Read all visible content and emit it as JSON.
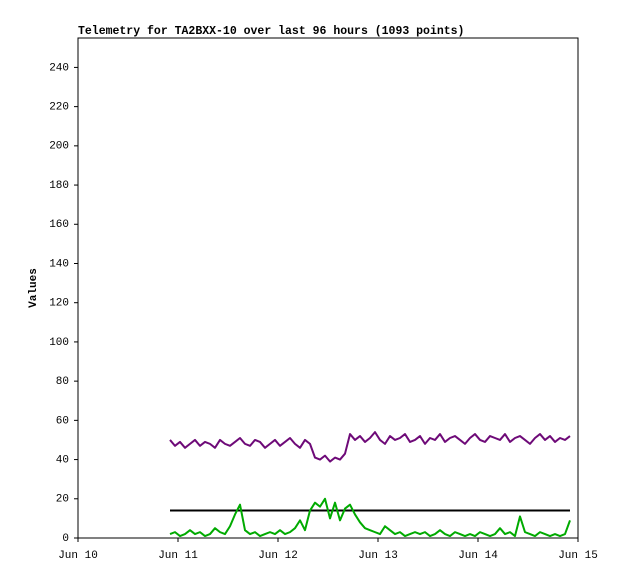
{
  "chart_data": {
    "type": "line",
    "title": "Telemetry for TA2BXX-10 over last 96 hours (1093 points)",
    "y_label": "Values",
    "x": [
      0.92,
      0.97,
      1.02,
      1.07,
      1.12,
      1.17,
      1.22,
      1.27,
      1.32,
      1.37,
      1.42,
      1.47,
      1.52,
      1.57,
      1.62,
      1.67,
      1.72,
      1.77,
      1.82,
      1.87,
      1.92,
      1.97,
      2.02,
      2.07,
      2.12,
      2.17,
      2.22,
      2.27,
      2.32,
      2.37,
      2.42,
      2.47,
      2.52,
      2.57,
      2.62,
      2.67,
      2.72,
      2.77,
      2.82,
      2.87,
      2.92,
      2.97,
      3.02,
      3.07,
      3.12,
      3.17,
      3.22,
      3.27,
      3.32,
      3.37,
      3.42,
      3.47,
      3.52,
      3.57,
      3.62,
      3.67,
      3.72,
      3.77,
      3.82,
      3.87,
      3.92,
      3.97,
      4.02,
      4.07,
      4.12,
      4.17,
      4.22,
      4.27,
      4.32,
      4.37,
      4.42,
      4.47,
      4.52,
      4.57,
      4.62,
      4.67,
      4.72,
      4.77,
      4.82,
      4.87,
      4.92
    ],
    "series": [
      {
        "color": "#6e0a78",
        "values": [
          50,
          47,
          49,
          46,
          48,
          50,
          47,
          49,
          48,
          46,
          50,
          48,
          47,
          49,
          51,
          48,
          47,
          50,
          49,
          46,
          48,
          50,
          47,
          49,
          51,
          48,
          46,
          50,
          48,
          41,
          40,
          42,
          39,
          41,
          40,
          43,
          53,
          50,
          52,
          49,
          51,
          54,
          50,
          48,
          52,
          50,
          51,
          53,
          49,
          50,
          52,
          48,
          51,
          50,
          53,
          49,
          51,
          52,
          50,
          48,
          51,
          53,
          50,
          49,
          52,
          51,
          50,
          53,
          49,
          51,
          52,
          50,
          48,
          51,
          53,
          50,
          52,
          49,
          51,
          50,
          52
        ]
      },
      {
        "color": "#000000",
        "values": [
          14,
          14,
          14,
          14,
          14,
          14,
          14,
          14,
          14,
          14,
          14,
          14,
          14,
          14,
          14,
          14,
          14,
          14,
          14,
          14,
          14,
          14,
          14,
          14,
          14,
          14,
          14,
          14,
          14,
          14,
          14,
          14,
          14,
          14,
          14,
          14,
          14,
          14,
          14,
          14,
          14,
          14,
          14,
          14,
          14,
          14,
          14,
          14,
          14,
          14,
          14,
          14,
          14,
          14,
          14,
          14,
          14,
          14,
          14,
          14,
          14,
          14,
          14,
          14,
          14,
          14,
          14,
          14,
          14,
          14,
          14,
          14,
          14,
          14,
          14,
          14,
          14,
          14,
          14,
          14,
          14
        ]
      },
      {
        "color": "#00aa00",
        "values": [
          2,
          3,
          1,
          2,
          4,
          2,
          3,
          1,
          2,
          5,
          3,
          2,
          6,
          12,
          17,
          4,
          2,
          3,
          1,
          2,
          3,
          2,
          4,
          2,
          3,
          5,
          9,
          4,
          14,
          18,
          16,
          20,
          10,
          18,
          9,
          15,
          17,
          12,
          8,
          5,
          4,
          3,
          2,
          6,
          4,
          2,
          3,
          1,
          2,
          3,
          2,
          3,
          1,
          2,
          4,
          2,
          1,
          3,
          2,
          1,
          2,
          1,
          3,
          2,
          1,
          2,
          5,
          2,
          3,
          1,
          11,
          3,
          2,
          1,
          3,
          2,
          1,
          2,
          1,
          2,
          9
        ]
      }
    ],
    "xlim": [
      0,
      5
    ],
    "xticks": [
      {
        "value": 0,
        "label": "Jun 10"
      },
      {
        "value": 1,
        "label": "Jun 11"
      },
      {
        "value": 2,
        "label": "Jun 12"
      },
      {
        "value": 3,
        "label": "Jun 13"
      },
      {
        "value": 4,
        "label": "Jun 14"
      },
      {
        "value": 5,
        "label": "Jun 15"
      }
    ],
    "ylim": [
      0,
      255
    ],
    "yticks": [
      0,
      20,
      40,
      60,
      80,
      100,
      120,
      140,
      160,
      180,
      200,
      220,
      240
    ],
    "grid": false
  }
}
